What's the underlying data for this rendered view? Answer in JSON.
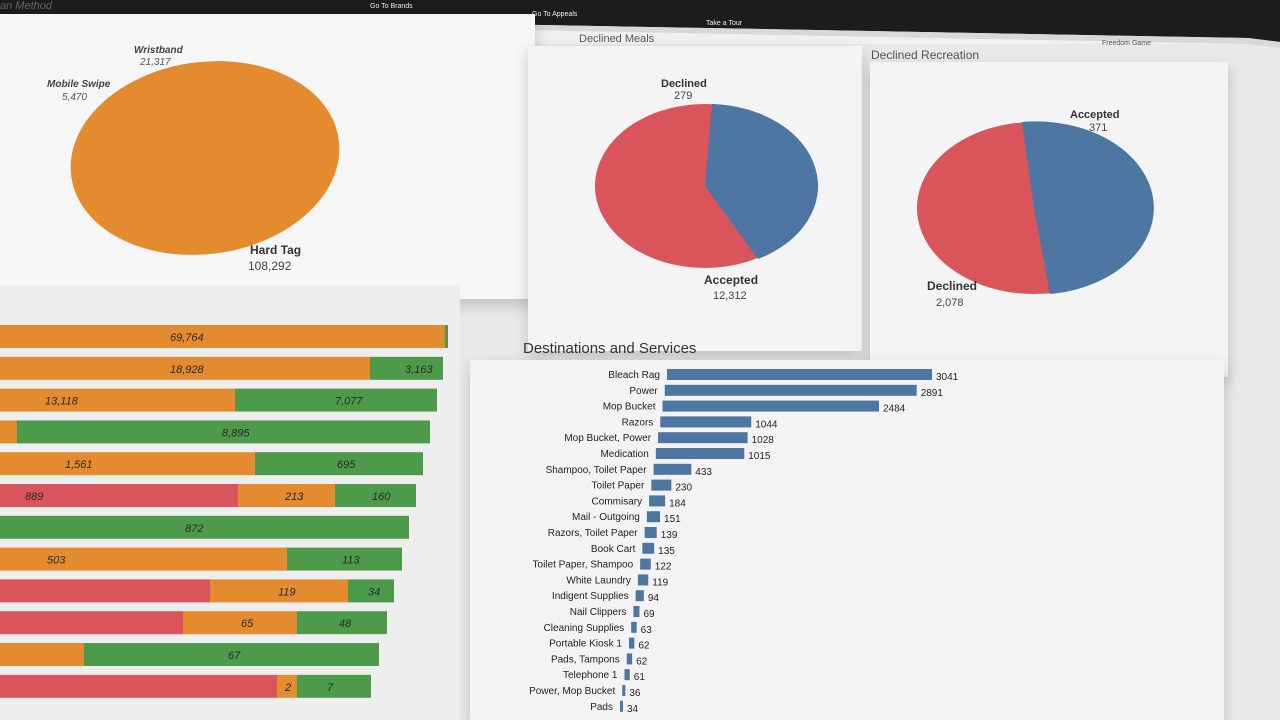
{
  "nav": {
    "items": [
      "Go To Brands",
      "Go To Appeals",
      "Take a Tour",
      "Freedom Game"
    ]
  },
  "scan_method": {
    "title": "an Method",
    "slices": [
      {
        "label": "Hard Tag",
        "value": "108,292"
      },
      {
        "label": "Wristband",
        "value": "21,317"
      },
      {
        "label": "Mobile Swipe",
        "value": "5,470"
      }
    ]
  },
  "declined_meals": {
    "title": "Declined Meals",
    "slices": [
      {
        "label": "Declined",
        "value": "279"
      },
      {
        "label": "Accepted",
        "value": "12,312"
      }
    ]
  },
  "declined_recreation": {
    "title": "Declined Recreation",
    "slices": [
      {
        "label": "Accepted",
        "value": "371"
      },
      {
        "label": "Declined",
        "value": "2,078"
      }
    ]
  },
  "stacked_rows": [
    {
      "labels": [
        "69,764",
        ""
      ]
    },
    {
      "labels": [
        "18,928",
        "3,163"
      ]
    },
    {
      "labels": [
        "13,118",
        "7,077"
      ]
    },
    {
      "labels": [
        "",
        "8,895"
      ]
    },
    {
      "labels": [
        "1,561",
        "695"
      ]
    },
    {
      "labels": [
        "889",
        "213",
        "160"
      ]
    },
    {
      "labels": [
        "872"
      ]
    },
    {
      "labels": [
        "503",
        "113"
      ]
    },
    {
      "labels": [
        "",
        "119",
        "34"
      ]
    },
    {
      "labels": [
        "",
        "65",
        "48"
      ]
    },
    {
      "labels": [
        "",
        "67"
      ]
    },
    {
      "labels": [
        "",
        "2",
        "7"
      ]
    }
  ],
  "colors": {
    "orange": "#e48a2f",
    "green": "#4e9a4b",
    "red": "#d9545b",
    "blue": "#4e76a3",
    "dark_bar": "#1a1a1a"
  },
  "chart_data": [
    {
      "type": "pie",
      "title": "",
      "categories": [
        "Hard Tag",
        "Wristband",
        "Mobile Swipe"
      ],
      "values": [
        108292,
        21317,
        5470
      ]
    },
    {
      "type": "pie",
      "title": "Declined Meals",
      "categories": [
        "Declined",
        "Accepted"
      ],
      "values": [
        279,
        12312
      ]
    },
    {
      "type": "pie",
      "title": "Declined Recreation",
      "categories": [
        "Accepted",
        "Declined"
      ],
      "values": [
        371,
        2078
      ]
    },
    {
      "type": "bar",
      "title": "Destinations and Services",
      "categories": [
        "Bleach Rag",
        "Power",
        "Mop Bucket",
        "Razors",
        "Mop Bucket, Power",
        "Medication",
        "Shampoo, Toilet Paper",
        "Toilet Paper",
        "Commisary",
        "Mail - Outgoing",
        "Razors, Toilet Paper",
        "Book Cart",
        "Toilet Paper, Shampoo",
        "White Laundry",
        "Indigent Supplies",
        "Nail Clippers",
        "Cleaning Supplies",
        "Portable Kiosk 1",
        "Pads, Tampons",
        "Telephone 1",
        "Power, Mop Bucket",
        "Pads"
      ],
      "values": [
        3041,
        2891,
        2484,
        1044,
        1028,
        1015,
        433,
        230,
        184,
        151,
        139,
        135,
        122,
        119,
        94,
        69,
        63,
        62,
        62,
        61,
        36,
        34
      ]
    }
  ]
}
